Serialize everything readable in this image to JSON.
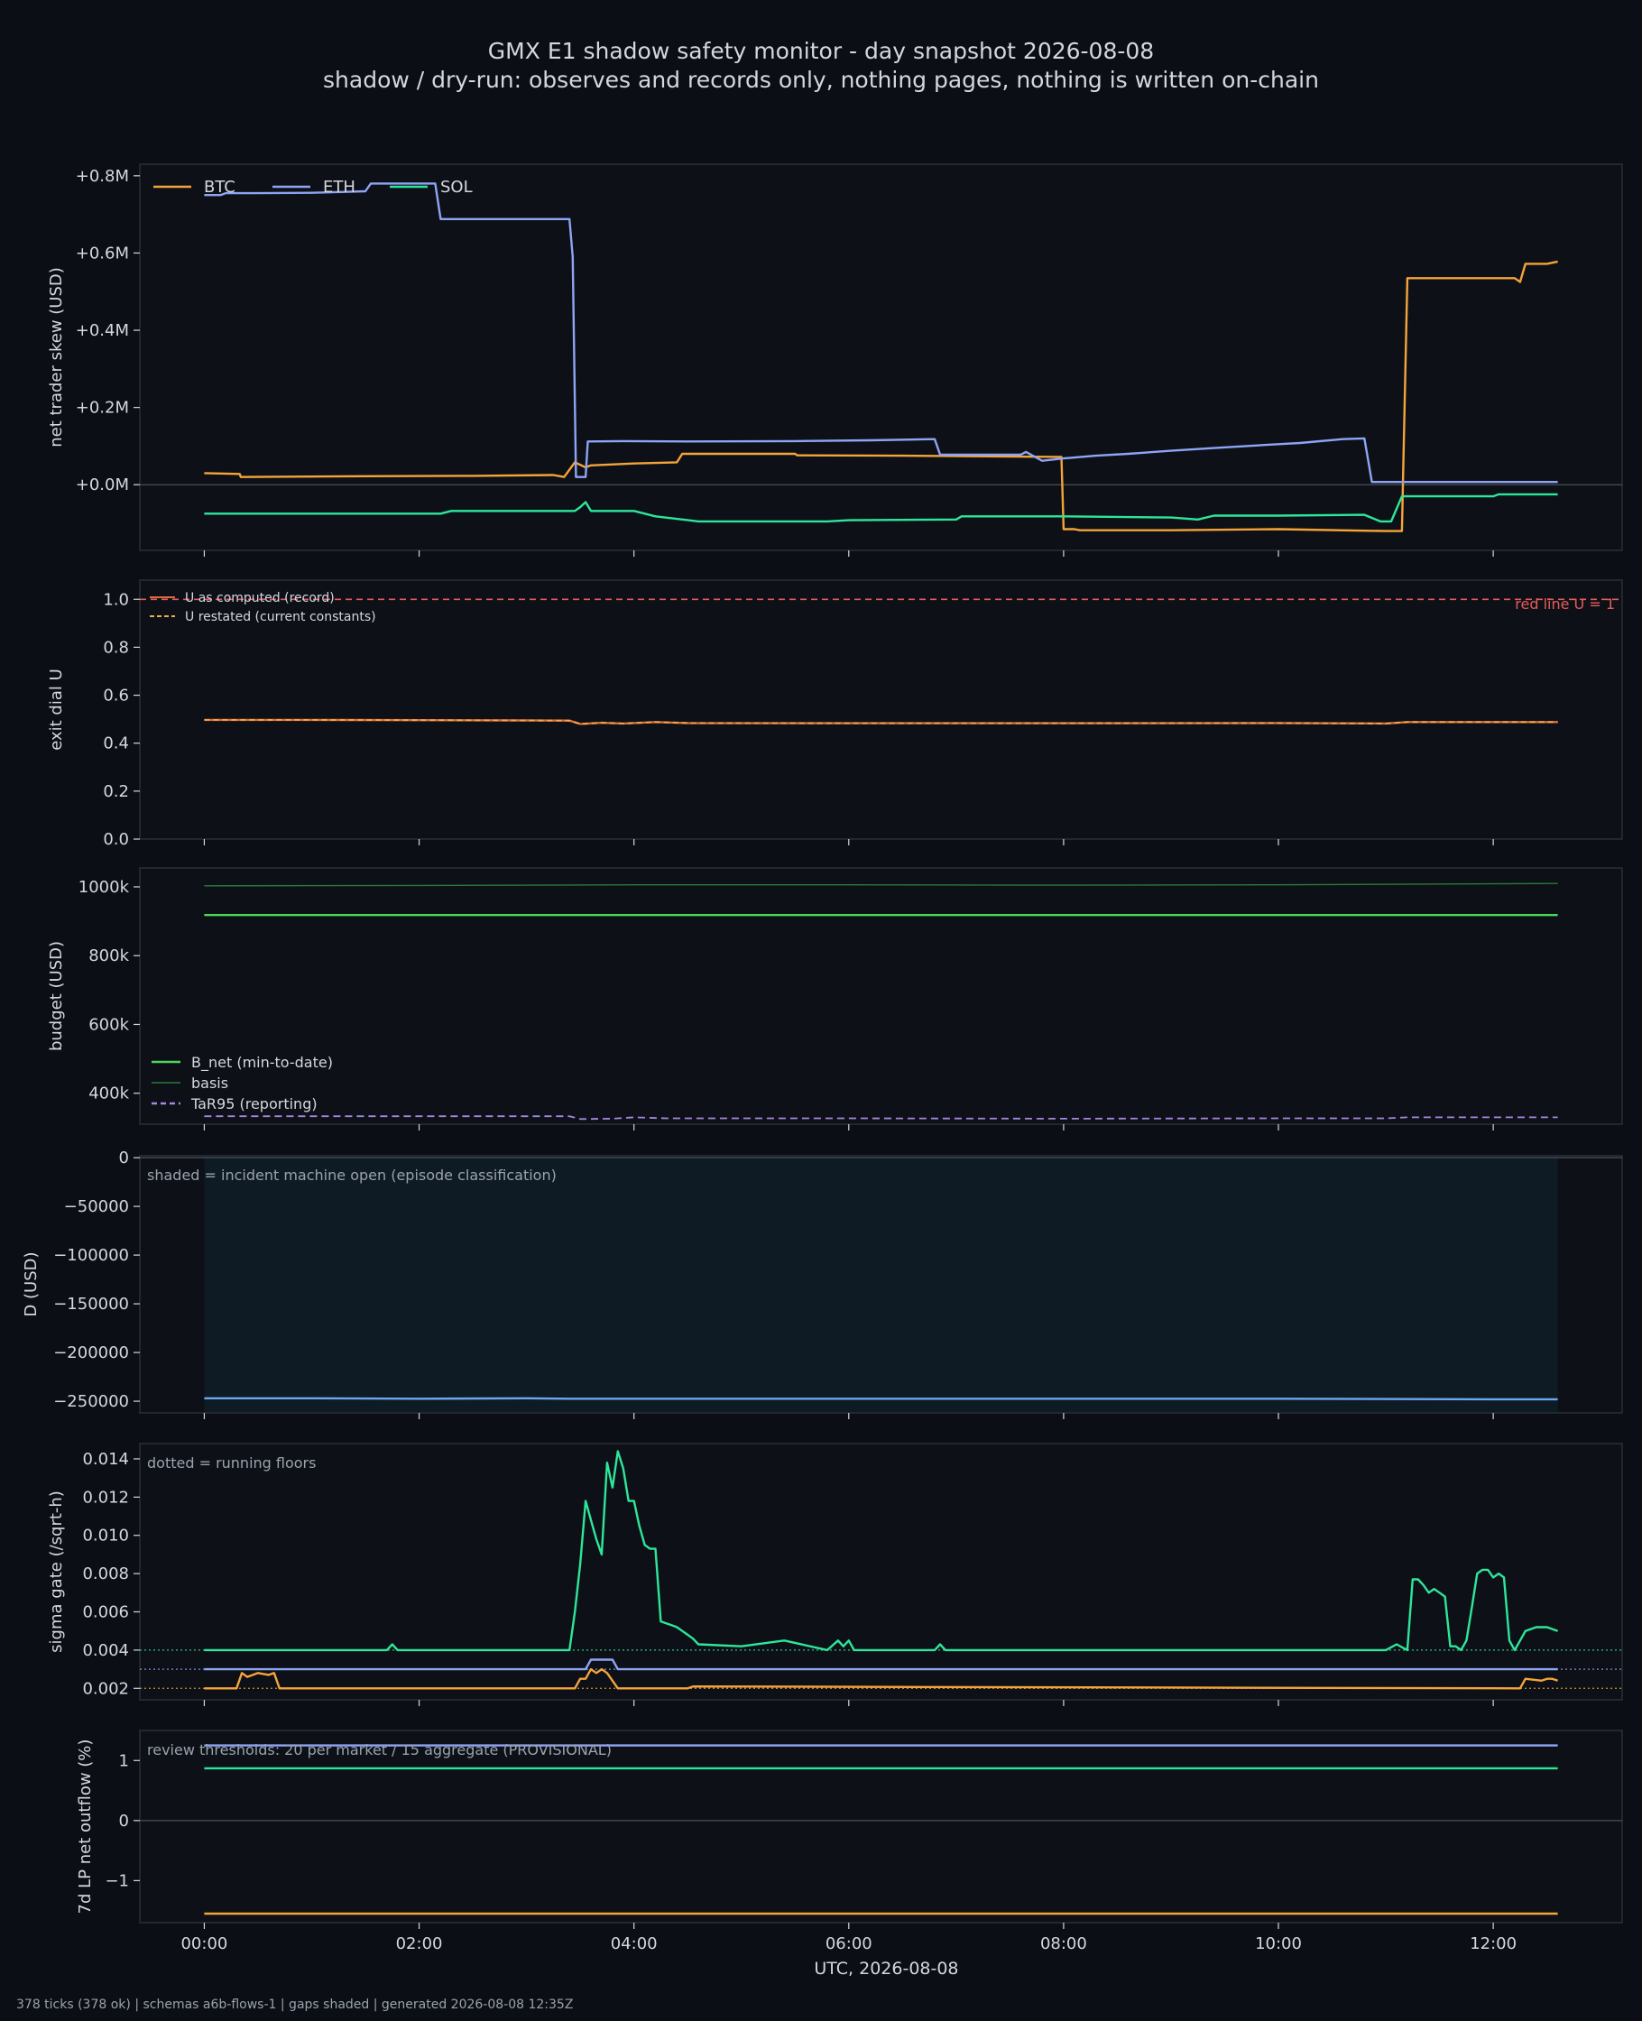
{
  "title": "GMX E1 shadow safety monitor - day snapshot 2026-08-08",
  "subtitle": "shadow / dry-run: observes and records only, nothing pages, nothing is written on-chain",
  "footer": "378 ticks (378 ok) | schemas a6b-flows-1 | gaps shaded | generated 2026-08-08 12:35Z",
  "colors": {
    "background": "#0b0f15",
    "panel": "#0d1117",
    "frame": "#2a2f38",
    "text": "#d4d8de",
    "btc": "#f5a43a",
    "eth": "#8fa4f5",
    "sol": "#2ee69a",
    "red_line": "#e55b5b",
    "u_computed": "#e5673d",
    "u_restated": "#e8b04a",
    "bnet": "#4cd65a",
    "basis": "#2b7a3a",
    "tar95": "#a586e0",
    "d_line": "#6ba8f0",
    "shade": "#0f1b24",
    "note": "#9aa2ad"
  },
  "chart_data": [
    {
      "type": "line",
      "ylabel": "net trader skew (USD)",
      "ylim": [
        -0.17,
        0.83
      ],
      "yticks": [
        0.0,
        0.2,
        0.4,
        0.6,
        0.8
      ],
      "ytick_labels": [
        "+0.0M",
        "+0.2M",
        "+0.4M",
        "+0.6M",
        "+0.8M"
      ],
      "zero_line": true,
      "legend": "top-left",
      "series": [
        {
          "name": "BTC",
          "color_key": "btc",
          "x": [
            0.0,
            0.33,
            0.34,
            1.5,
            2.5,
            3.25,
            3.35,
            3.45,
            3.55,
            3.6,
            4.0,
            4.4,
            4.45,
            5.5,
            5.52,
            6.5,
            7.98,
            8.0,
            8.1,
            8.15,
            9.0,
            10.0,
            11.0,
            11.15,
            11.2,
            11.35,
            12.0,
            12.2,
            12.25,
            12.3,
            12.5,
            12.6
          ],
          "y": [
            0.03,
            0.028,
            0.02,
            0.022,
            0.023,
            0.025,
            0.02,
            0.058,
            0.045,
            0.05,
            0.055,
            0.058,
            0.08,
            0.08,
            0.076,
            0.075,
            0.072,
            -0.115,
            -0.115,
            -0.118,
            -0.118,
            -0.115,
            -0.12,
            -0.12,
            0.535,
            0.535,
            0.535,
            0.535,
            0.525,
            0.572,
            0.572,
            0.578
          ]
        },
        {
          "name": "ETH",
          "color_key": "eth",
          "x": [
            0.0,
            0.15,
            0.2,
            0.5,
            1.0,
            1.5,
            1.55,
            2.15,
            2.2,
            3.0,
            3.4,
            3.43,
            3.46,
            3.55,
            3.57,
            3.9,
            4.5,
            5.5,
            6.2,
            6.8,
            6.85,
            7.6,
            7.65,
            7.8,
            8.0,
            8.3,
            8.6,
            9.0,
            9.4,
            9.7,
            10.0,
            10.2,
            10.6,
            10.8,
            10.87,
            11.0,
            12.0,
            12.6
          ],
          "y": [
            0.75,
            0.75,
            0.755,
            0.755,
            0.756,
            0.76,
            0.78,
            0.78,
            0.688,
            0.688,
            0.688,
            0.59,
            0.02,
            0.02,
            0.112,
            0.113,
            0.112,
            0.113,
            0.115,
            0.118,
            0.078,
            0.078,
            0.085,
            0.062,
            0.068,
            0.075,
            0.08,
            0.088,
            0.095,
            0.1,
            0.105,
            0.108,
            0.118,
            0.12,
            0.007,
            0.007,
            0.007,
            0.007
          ]
        },
        {
          "name": "SOL",
          "color_key": "sol",
          "x": [
            0.0,
            1.0,
            2.2,
            2.3,
            3.0,
            3.45,
            3.5,
            3.55,
            3.6,
            4.0,
            4.2,
            4.6,
            5.0,
            5.8,
            6.0,
            7.0,
            7.05,
            8.0,
            9.0,
            9.25,
            9.4,
            9.6,
            10.0,
            10.8,
            10.95,
            11.05,
            11.15,
            11.2,
            12.0,
            12.05,
            12.2,
            12.6
          ],
          "y": [
            -0.075,
            -0.075,
            -0.075,
            -0.068,
            -0.068,
            -0.068,
            -0.058,
            -0.045,
            -0.068,
            -0.068,
            -0.082,
            -0.095,
            -0.095,
            -0.095,
            -0.092,
            -0.09,
            -0.082,
            -0.082,
            -0.085,
            -0.09,
            -0.08,
            -0.08,
            -0.08,
            -0.078,
            -0.095,
            -0.095,
            -0.03,
            -0.03,
            -0.03,
            -0.025,
            -0.025,
            -0.025
          ]
        }
      ]
    },
    {
      "type": "line",
      "ylabel": "exit dial U",
      "ylim": [
        0.0,
        1.08
      ],
      "yticks": [
        0.0,
        0.2,
        0.4,
        0.6,
        0.8,
        1.0
      ],
      "ytick_labels": [
        "0.0",
        "0.2",
        "0.4",
        "0.6",
        "0.8",
        "1.0"
      ],
      "legend": "top-left",
      "annotation": "red line U = 1",
      "series": [
        {
          "name": "U as computed (record)",
          "color_key": "u_computed",
          "x": [
            0.0,
            1.0,
            2.0,
            3.0,
            3.4,
            3.5,
            3.7,
            3.9,
            4.2,
            4.5,
            6.0,
            8.0,
            10.0,
            11.0,
            11.2,
            12.0,
            12.6
          ],
          "y": [
            0.497,
            0.497,
            0.496,
            0.495,
            0.494,
            0.48,
            0.485,
            0.482,
            0.488,
            0.484,
            0.483,
            0.483,
            0.484,
            0.482,
            0.488,
            0.488,
            0.488
          ]
        },
        {
          "name": "U restated (current constants)",
          "color_key": "u_restated",
          "x": [
            0.0,
            1.0,
            2.0,
            3.0,
            3.4,
            3.5,
            3.7,
            3.9,
            4.2,
            4.5,
            6.0,
            8.0,
            10.0,
            11.0,
            11.2,
            12.0,
            12.6
          ],
          "y": [
            0.497,
            0.497,
            0.496,
            0.495,
            0.494,
            0.48,
            0.485,
            0.482,
            0.488,
            0.484,
            0.483,
            0.483,
            0.484,
            0.482,
            0.488,
            0.488,
            0.488
          ]
        },
        {
          "name": "red line U = 1",
          "color_key": "red_line",
          "x": [
            -0.6,
            13.2
          ],
          "y": [
            1.0,
            1.0
          ]
        }
      ]
    },
    {
      "type": "line",
      "ylabel": "budget (USD)",
      "ylim": [
        310000,
        1055000
      ],
      "yticks": [
        400000,
        600000,
        800000,
        1000000
      ],
      "ytick_labels": [
        "400k",
        "600k",
        "800k",
        "1000k"
      ],
      "legend": "bottom-left",
      "series": [
        {
          "name": "B_net (min-to-date)",
          "color_key": "bnet",
          "x": [
            0.0,
            12.6
          ],
          "y": [
            918000,
            918000
          ]
        },
        {
          "name": "basis",
          "color_key": "basis",
          "x": [
            0.0,
            2.0,
            4.0,
            6.0,
            8.0,
            10.0,
            12.6
          ],
          "y": [
            1003000,
            1004000,
            1006000,
            1006000,
            1005000,
            1006000,
            1010000
          ]
        },
        {
          "name": "TaR95 (reporting)",
          "color_key": "tar95",
          "x": [
            0.0,
            3.4,
            3.5,
            3.8,
            4.0,
            4.3,
            6.0,
            8.0,
            10.0,
            11.0,
            11.2,
            12.6
          ],
          "y": [
            333000,
            333000,
            325000,
            326000,
            330000,
            327000,
            327000,
            326000,
            327000,
            327000,
            330000,
            330000
          ]
        }
      ]
    },
    {
      "type": "line",
      "ylabel": "D (USD)",
      "ylim": [
        -262000,
        2000
      ],
      "yticks": [
        -250000,
        -200000,
        -150000,
        -100000,
        -50000,
        0
      ],
      "ytick_labels": [
        "−250000",
        "−200000",
        "−150000",
        "−100000",
        "−50000",
        "0"
      ],
      "zero_line": true,
      "annotation": "shaded = incident machine open (episode classification)",
      "shaded_span": [
        0.0,
        12.6
      ],
      "series": [
        {
          "name": "D",
          "color_key": "d_line",
          "x": [
            0.0,
            1.0,
            2.0,
            3.0,
            3.4,
            4.0,
            6.0,
            8.0,
            10.0,
            12.0,
            12.6
          ],
          "y": [
            -247000,
            -247000,
            -247500,
            -247000,
            -247500,
            -247500,
            -247500,
            -247500,
            -247500,
            -248000,
            -248000
          ]
        }
      ]
    },
    {
      "type": "line",
      "ylabel": "sigma gate (/sqrt-h)",
      "ylim": [
        0.0014,
        0.0148
      ],
      "yticks": [
        0.002,
        0.004,
        0.006,
        0.008,
        0.01,
        0.012,
        0.014
      ],
      "ytick_labels": [
        "0.002",
        "0.004",
        "0.006",
        "0.008",
        "0.010",
        "0.012",
        "0.014"
      ],
      "annotation": "dotted = running floors",
      "floors": [
        {
          "color_key": "sol",
          "y": 0.004
        },
        {
          "color_key": "eth",
          "y": 0.003
        },
        {
          "color_key": "btc",
          "y": 0.002
        }
      ],
      "series": [
        {
          "name": "SOL",
          "color_key": "sol",
          "x": [
            0.0,
            1.7,
            1.75,
            1.8,
            3.4,
            3.45,
            3.5,
            3.55,
            3.6,
            3.65,
            3.7,
            3.75,
            3.8,
            3.85,
            3.9,
            3.95,
            4.0,
            4.05,
            4.1,
            4.15,
            4.2,
            4.25,
            4.3,
            4.35,
            4.4,
            4.45,
            4.5,
            4.55,
            4.6,
            5.0,
            5.4,
            5.8,
            5.9,
            5.95,
            6.0,
            6.05,
            6.1,
            6.8,
            6.85,
            6.9,
            11.0,
            11.1,
            11.2,
            11.25,
            11.3,
            11.35,
            11.4,
            11.45,
            11.5,
            11.55,
            11.6,
            11.65,
            11.7,
            11.75,
            11.8,
            11.85,
            11.9,
            11.95,
            12.0,
            12.05,
            12.1,
            12.15,
            12.2,
            12.25,
            12.3,
            12.4,
            12.5,
            12.6
          ],
          "y": [
            0.004,
            0.004,
            0.0043,
            0.004,
            0.004,
            0.006,
            0.0085,
            0.0118,
            0.0108,
            0.0098,
            0.009,
            0.0138,
            0.0125,
            0.0144,
            0.0135,
            0.0118,
            0.0118,
            0.0105,
            0.0095,
            0.0093,
            0.0093,
            0.0055,
            0.0054,
            0.0053,
            0.0052,
            0.005,
            0.0048,
            0.0046,
            0.0043,
            0.0042,
            0.0045,
            0.004,
            0.0045,
            0.0042,
            0.0045,
            0.004,
            0.004,
            0.004,
            0.0043,
            0.004,
            0.004,
            0.0043,
            0.004,
            0.0077,
            0.0077,
            0.0074,
            0.007,
            0.0072,
            0.007,
            0.0068,
            0.0042,
            0.0042,
            0.004,
            0.0045,
            0.0062,
            0.008,
            0.0082,
            0.0082,
            0.0078,
            0.008,
            0.0078,
            0.0045,
            0.004,
            0.0045,
            0.005,
            0.0052,
            0.0052,
            0.005
          ]
        },
        {
          "name": "ETH",
          "color_key": "eth",
          "x": [
            0.0,
            3.55,
            3.6,
            3.8,
            3.85,
            12.6
          ],
          "y": [
            0.003,
            0.003,
            0.0035,
            0.0035,
            0.003,
            0.003
          ]
        },
        {
          "name": "BTC",
          "color_key": "btc",
          "x": [
            0.0,
            0.3,
            0.35,
            0.4,
            0.5,
            0.6,
            0.65,
            0.7,
            3.45,
            3.5,
            3.55,
            3.6,
            3.65,
            3.7,
            3.75,
            3.85,
            3.9,
            4.5,
            4.55,
            12.25,
            12.3,
            12.45,
            12.5,
            12.55,
            12.6
          ],
          "y": [
            0.002,
            0.002,
            0.0028,
            0.0026,
            0.0028,
            0.0027,
            0.0028,
            0.002,
            0.002,
            0.0025,
            0.0025,
            0.003,
            0.0028,
            0.003,
            0.0028,
            0.002,
            0.002,
            0.002,
            0.0021,
            0.002,
            0.0025,
            0.0024,
            0.0025,
            0.0025,
            0.0024
          ]
        }
      ]
    },
    {
      "type": "line",
      "ylabel": "7d LP net outflow (%)",
      "ylim": [
        -1.7,
        1.5
      ],
      "yticks": [
        -1,
        0,
        1
      ],
      "ytick_labels": [
        "−1",
        "0",
        "1"
      ],
      "zero_line": true,
      "annotation": "review thresholds: 20 per market / 15 aggregate (PROVISIONAL)",
      "series": [
        {
          "name": "ETH",
          "color_key": "eth",
          "x": [
            0.0,
            12.6
          ],
          "y": [
            1.25,
            1.25
          ]
        },
        {
          "name": "SOL",
          "color_key": "sol",
          "x": [
            0.0,
            12.6
          ],
          "y": [
            0.87,
            0.87
          ]
        },
        {
          "name": "BTC",
          "color_key": "btc",
          "x": [
            0.0,
            12.6
          ],
          "y": [
            -1.55,
            -1.55
          ]
        }
      ]
    }
  ],
  "x_axis": {
    "xlabel": "UTC, 2026-08-08",
    "xlim": [
      -0.6,
      13.2
    ],
    "ticks": [
      0,
      2,
      4,
      6,
      8,
      10,
      12
    ],
    "tick_labels": [
      "00:00",
      "02:00",
      "04:00",
      "06:00",
      "08:00",
      "10:00",
      "12:00"
    ]
  }
}
